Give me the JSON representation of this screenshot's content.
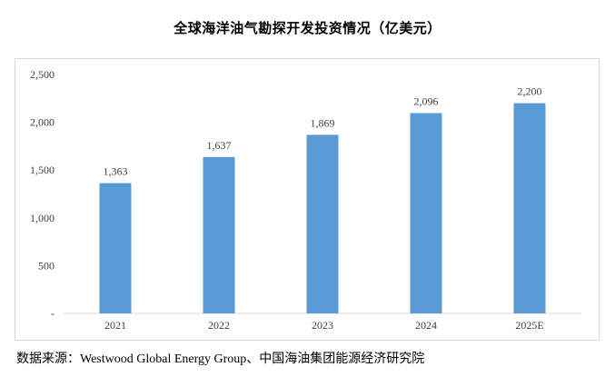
{
  "chart_data": {
    "type": "bar",
    "title": "全球海洋油气勘探开发投资情况（亿美元）",
    "categories": [
      "2021",
      "2022",
      "2023",
      "2024",
      "2025E"
    ],
    "values": [
      1363,
      1637,
      1869,
      2096,
      2200
    ],
    "value_labels": [
      "1,363",
      "1,637",
      "1,869",
      "2,096",
      "2,200"
    ],
    "ylim": [
      0,
      2500
    ],
    "yticks": [
      0,
      500,
      1000,
      1500,
      2000,
      2500
    ],
    "ytick_labels": [
      "-",
      "500",
      "1,000",
      "1,500",
      "2,000",
      "2,500"
    ],
    "grid": false,
    "bar_color": "#5b9bd5",
    "xlabel": "",
    "ylabel": ""
  },
  "source": "数据来源：Westwood Global Energy Group、中国海油集团能源经济研究院"
}
